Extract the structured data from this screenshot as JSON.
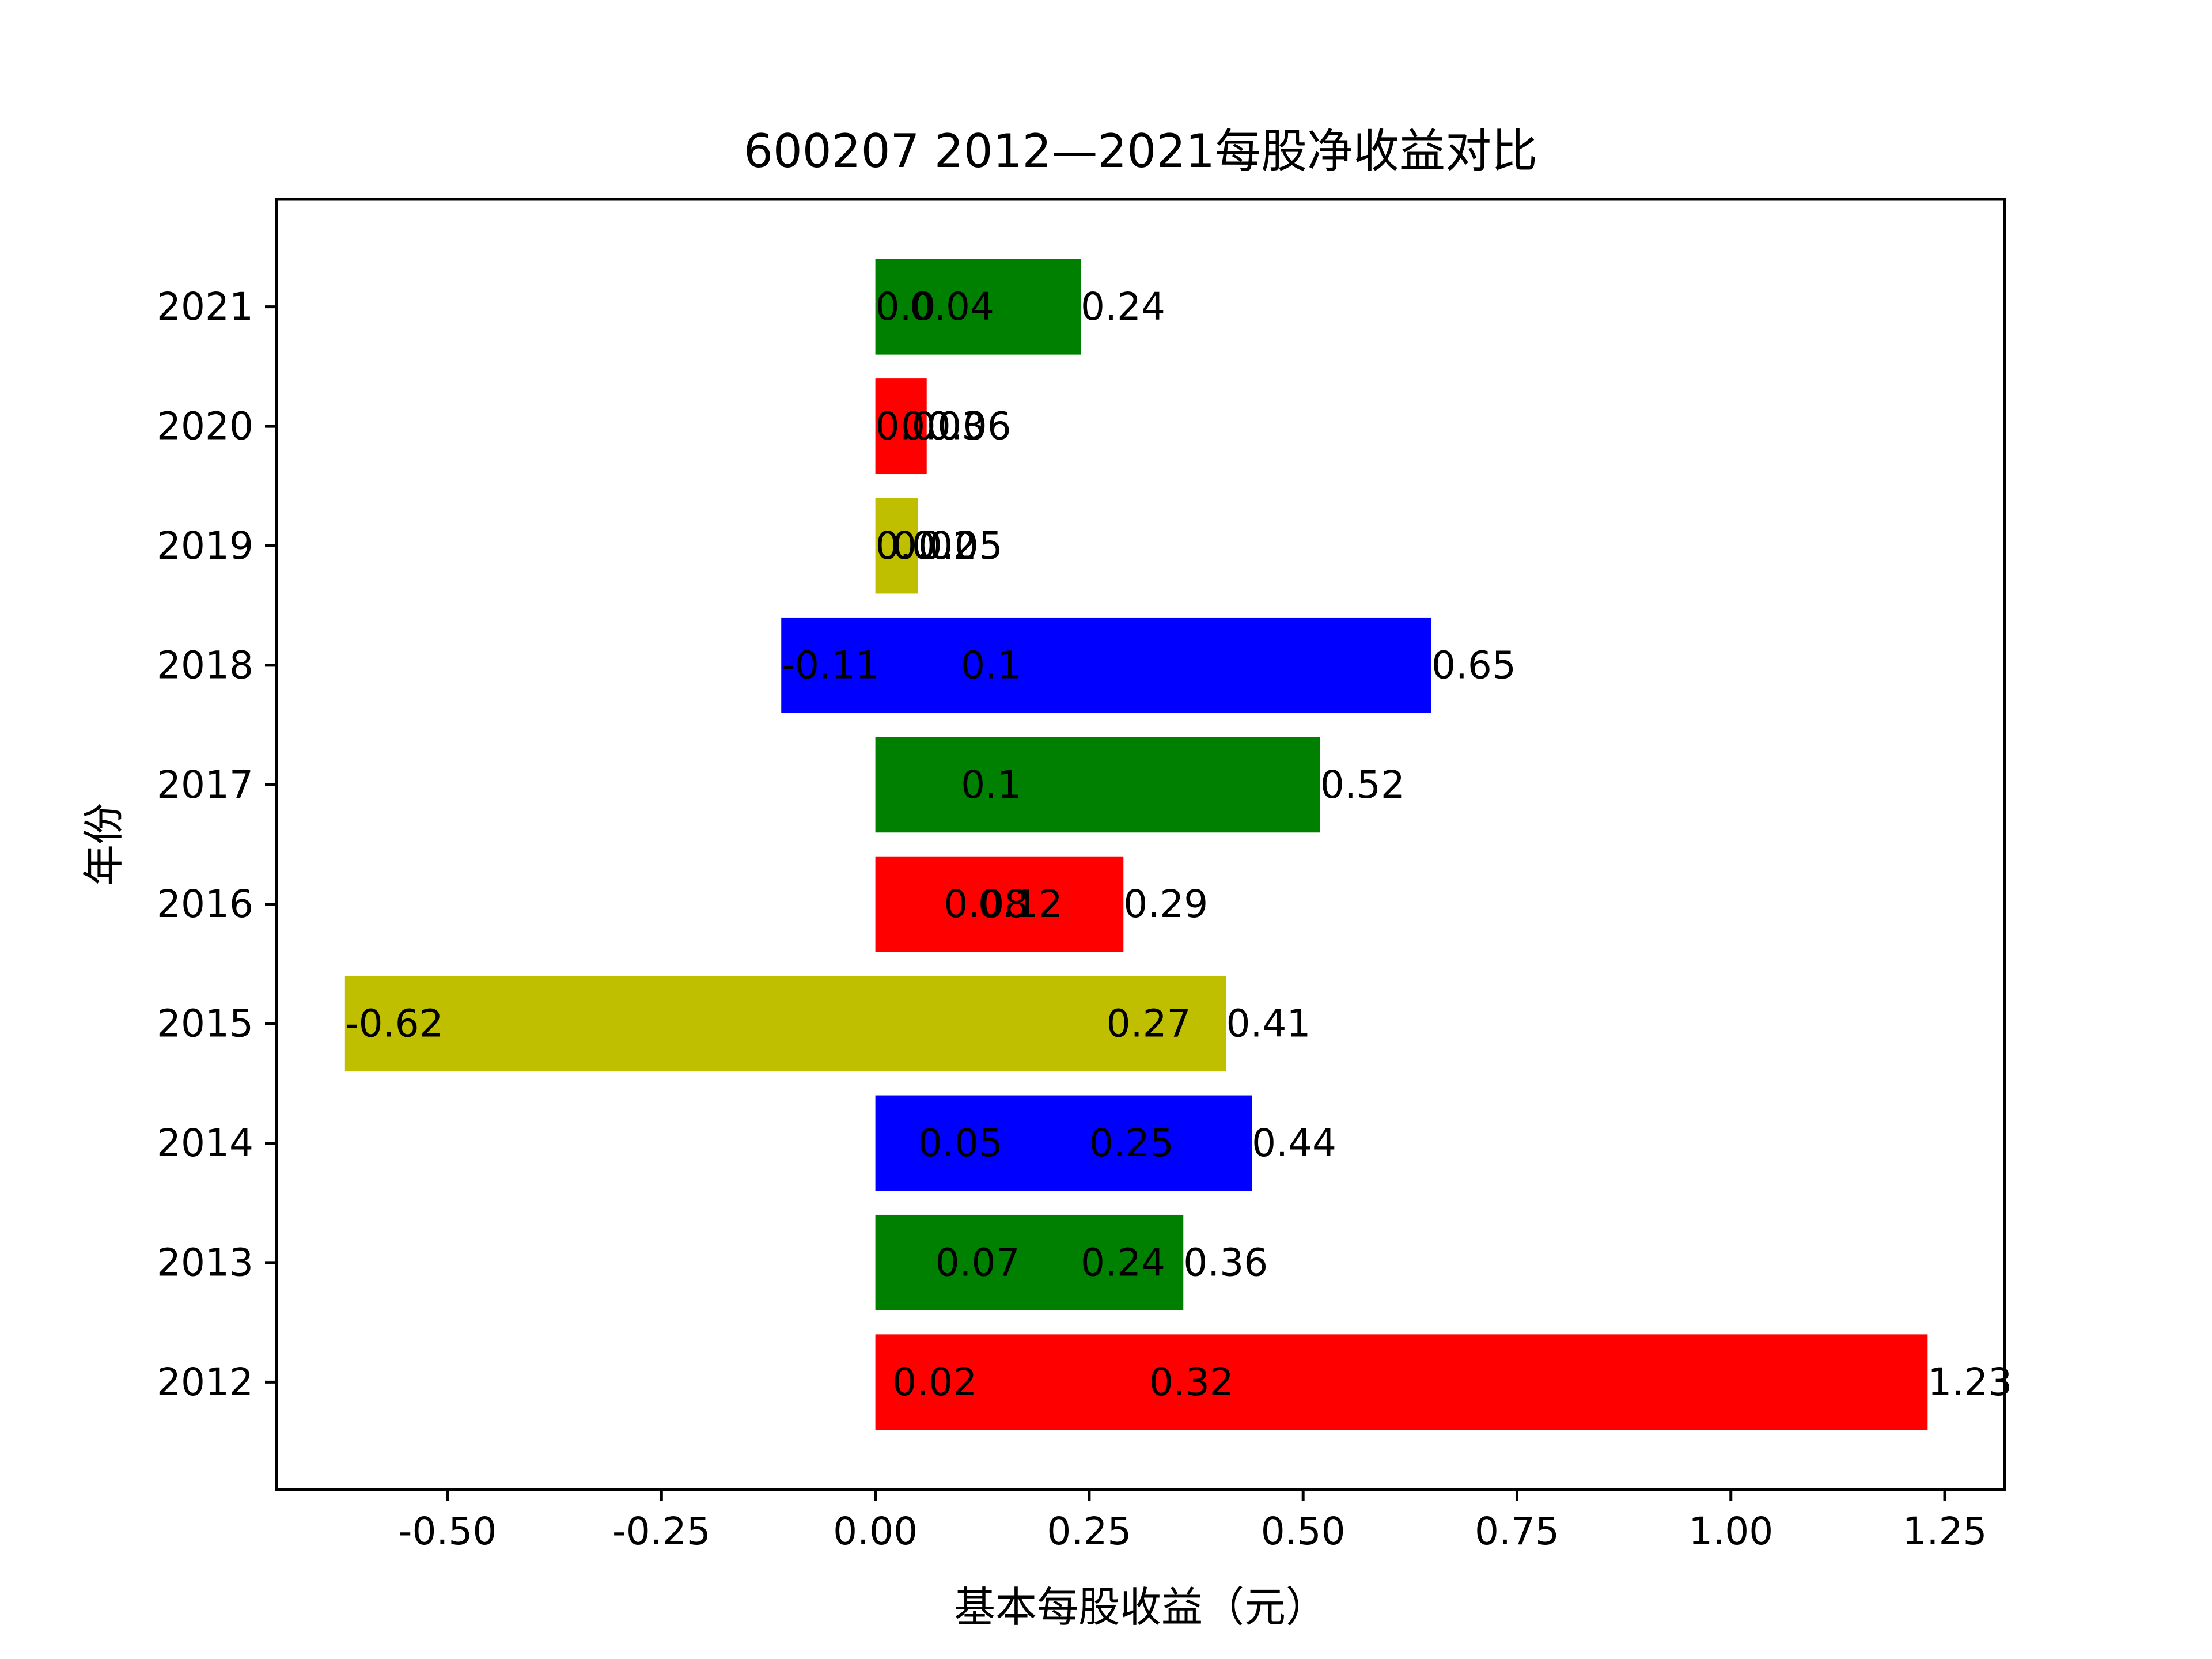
{
  "chart_data": {
    "type": "bar",
    "orientation": "horizontal",
    "title": "600207 2012—2021每股净收益对比",
    "xlabel": "基本每股收益（元）",
    "ylabel": "年份",
    "xlim": [
      -0.7,
      1.32
    ],
    "xticks": [
      -0.5,
      -0.25,
      0.0,
      0.25,
      0.5,
      0.75,
      1.0,
      1.25
    ],
    "xtick_labels": [
      "-0.50",
      "-0.25",
      "0.00",
      "0.25",
      "0.50",
      "0.75",
      "1.00",
      "1.25"
    ],
    "categories": [
      "2012",
      "2013",
      "2014",
      "2015",
      "2016",
      "2017",
      "2018",
      "2019",
      "2020",
      "2021"
    ],
    "bar_colors": [
      "#ff0000",
      "#008000",
      "#0000ff",
      "#bfbf00",
      "#ff0000",
      "#008000",
      "#0000ff",
      "#bfbf00",
      "#ff0000",
      "#008000"
    ],
    "grid": false,
    "legend": "none",
    "bars": [
      {
        "year": "2012",
        "min": 0,
        "max": 1.23
      },
      {
        "year": "2013",
        "min": 0,
        "max": 0.36
      },
      {
        "year": "2014",
        "min": 0,
        "max": 0.44
      },
      {
        "year": "2015",
        "min": -0.62,
        "max": 0.41
      },
      {
        "year": "2016",
        "min": 0,
        "max": 0.29
      },
      {
        "year": "2017",
        "min": 0,
        "max": 0.52
      },
      {
        "year": "2018",
        "min": -0.11,
        "max": 0.65
      },
      {
        "year": "2019",
        "min": 0,
        "max": 0.05
      },
      {
        "year": "2020",
        "min": 0,
        "max": 0.06
      },
      {
        "year": "2021",
        "min": 0,
        "max": 0.24
      }
    ],
    "labels": [
      {
        "year": "2012",
        "x": 0.02,
        "text": "0.02"
      },
      {
        "year": "2012",
        "x": 0.32,
        "text": "0.32"
      },
      {
        "year": "2012",
        "x": 1.23,
        "text": "1.23"
      },
      {
        "year": "2013",
        "x": 0.07,
        "text": "0.07"
      },
      {
        "year": "2013",
        "x": 0.24,
        "text": "0.24"
      },
      {
        "year": "2013",
        "x": 0.36,
        "text": "0.36"
      },
      {
        "year": "2014",
        "x": 0.05,
        "text": "0.05"
      },
      {
        "year": "2014",
        "x": 0.25,
        "text": "0.25"
      },
      {
        "year": "2014",
        "x": 0.44,
        "text": "0.44"
      },
      {
        "year": "2015",
        "x": -0.62,
        "text": "-0.62"
      },
      {
        "year": "2015",
        "x": 0.27,
        "text": "0.27"
      },
      {
        "year": "2015",
        "x": 0.41,
        "text": "0.41"
      },
      {
        "year": "2016",
        "x": 0.08,
        "text": "0.08"
      },
      {
        "year": "2016",
        "x": 0.12,
        "text": "0.12"
      },
      {
        "year": "2016",
        "x": 0.29,
        "text": "0.29"
      },
      {
        "year": "2017",
        "x": 0.1,
        "text": "0.1"
      },
      {
        "year": "2017",
        "x": 0.52,
        "text": "0.52"
      },
      {
        "year": "2018",
        "x": -0.11,
        "text": "-0.11"
      },
      {
        "year": "2018",
        "x": 0.1,
        "text": "0.1"
      },
      {
        "year": "2018",
        "x": 0.65,
        "text": "0.65"
      },
      {
        "year": "2019",
        "x": 0.0,
        "text": "0.0"
      },
      {
        "year": "2019",
        "x": 0.02,
        "text": "0.02"
      },
      {
        "year": "2019",
        "x": 0.05,
        "text": "0.05"
      },
      {
        "year": "2020",
        "x": 0.0,
        "text": "0.0"
      },
      {
        "year": "2020",
        "x": 0.03,
        "text": "0.03"
      },
      {
        "year": "2020",
        "x": 0.06,
        "text": "0.06"
      },
      {
        "year": "2021",
        "x": 0.0,
        "text": "0.0"
      },
      {
        "year": "2021",
        "x": 0.04,
        "text": "0.04"
      },
      {
        "year": "2021",
        "x": 0.24,
        "text": "0.24"
      }
    ]
  }
}
